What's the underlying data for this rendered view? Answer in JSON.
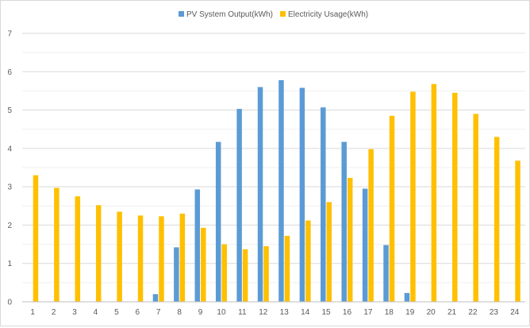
{
  "chart_data": {
    "type": "bar",
    "title": "",
    "xlabel": "",
    "ylabel": "",
    "categories": [
      "1",
      "2",
      "3",
      "4",
      "5",
      "6",
      "7",
      "8",
      "9",
      "10",
      "11",
      "12",
      "13",
      "14",
      "15",
      "16",
      "17",
      "18",
      "19",
      "20",
      "21",
      "22",
      "23",
      "24"
    ],
    "series": [
      {
        "name": "PV System Output(kWh)",
        "color": "#5b9bd5",
        "values": [
          0,
          0,
          0,
          0,
          0,
          0,
          0.2,
          1.42,
          2.93,
          4.17,
          5.03,
          5.6,
          5.78,
          5.58,
          5.07,
          4.17,
          2.95,
          1.48,
          0.23,
          0,
          0,
          0,
          0,
          0
        ]
      },
      {
        "name": "Electricity Usage(kWh)",
        "color": "#ffc000",
        "values": [
          3.3,
          2.97,
          2.75,
          2.52,
          2.35,
          2.25,
          2.23,
          2.3,
          1.93,
          1.5,
          1.37,
          1.45,
          1.72,
          2.12,
          2.6,
          3.23,
          3.98,
          4.85,
          5.48,
          5.68,
          5.45,
          4.9,
          4.3,
          3.68
        ]
      }
    ],
    "ylim": [
      0,
      7
    ],
    "yticks": [
      0,
      1,
      2,
      3,
      4,
      5,
      6,
      7
    ],
    "grid": true,
    "legend_position": "top-center"
  }
}
